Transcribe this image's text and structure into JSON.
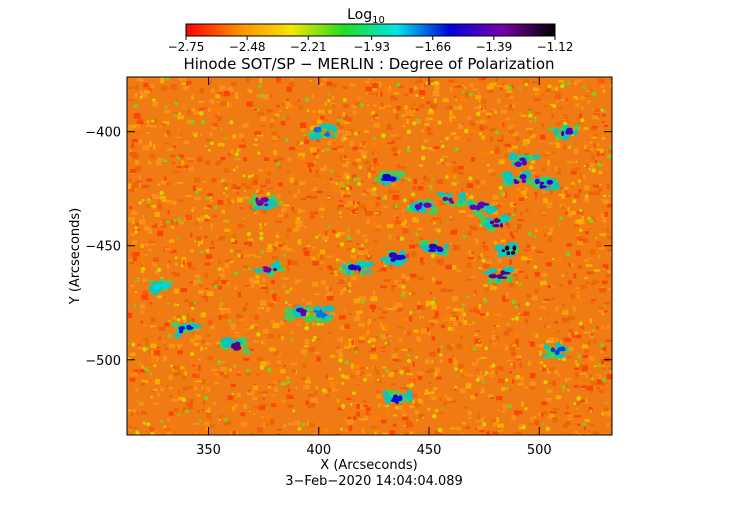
{
  "chart_data": {
    "type": "heatmap",
    "title": "Hinode SOT/SP − MERLIN : Degree of Polarization",
    "xlabel": "X (Arcseconds)",
    "ylabel": "Y (Arcseconds)",
    "date": "3−Feb−2020 14:04:04.089",
    "xlim": [
      313,
      533
    ],
    "ylim": [
      -533,
      -376
    ],
    "x_ticks": [
      350,
      400,
      450,
      500
    ],
    "x_tick_labels": [
      "350",
      "400",
      "450",
      "500"
    ],
    "y_ticks": [
      -400,
      -450,
      -500
    ],
    "y_tick_labels": [
      "−400",
      "−450",
      "−500"
    ],
    "colorbar": {
      "label_base": "Log",
      "label_sub": "10",
      "range": [
        -2.75,
        -1.12
      ],
      "tick_values": [
        -2.75,
        -2.48,
        -2.21,
        -1.93,
        -1.66,
        -1.39,
        -1.12
      ],
      "tick_labels": [
        "−2.75",
        "−2.48",
        "−2.21",
        "−1.93",
        "−1.66",
        "−1.39",
        "−1.12"
      ],
      "colormap": [
        "#ff0000",
        "#ff8c00",
        "#f5e600",
        "#22dd22",
        "#00e6e6",
        "#0000dd",
        "#7700aa",
        "#000000"
      ]
    },
    "background_level": -2.62,
    "high_polarization_patches": [
      {
        "x": 375,
        "y": -431,
        "value": -1.35
      },
      {
        "x": 378,
        "y": -460,
        "value": -1.35
      },
      {
        "x": 391,
        "y": -479,
        "value": -1.4
      },
      {
        "x": 362,
        "y": -494,
        "value": -1.3
      },
      {
        "x": 340,
        "y": -487,
        "value": -1.6
      },
      {
        "x": 436,
        "y": -455,
        "value": -1.5
      },
      {
        "x": 447,
        "y": -433,
        "value": -1.4
      },
      {
        "x": 452,
        "y": -451,
        "value": -1.5
      },
      {
        "x": 460,
        "y": -430,
        "value": -1.35
      },
      {
        "x": 473,
        "y": -433,
        "value": -1.4
      },
      {
        "x": 480,
        "y": -440,
        "value": -1.3
      },
      {
        "x": 486,
        "y": -452,
        "value": -1.2
      },
      {
        "x": 482,
        "y": -463,
        "value": -1.3
      },
      {
        "x": 490,
        "y": -421,
        "value": -1.45
      },
      {
        "x": 493,
        "y": -413,
        "value": -1.4
      },
      {
        "x": 512,
        "y": -400,
        "value": -1.45
      },
      {
        "x": 502,
        "y": -423,
        "value": -1.5
      },
      {
        "x": 432,
        "y": -420,
        "value": -1.55
      },
      {
        "x": 402,
        "y": -400,
        "value": -1.7
      },
      {
        "x": 417,
        "y": -460,
        "value": -1.6
      },
      {
        "x": 436,
        "y": -517,
        "value": -1.6
      },
      {
        "x": 400,
        "y": -480,
        "value": -1.7
      },
      {
        "x": 508,
        "y": -496,
        "value": -1.65
      },
      {
        "x": 328,
        "y": -468,
        "value": -1.8
      }
    ]
  }
}
